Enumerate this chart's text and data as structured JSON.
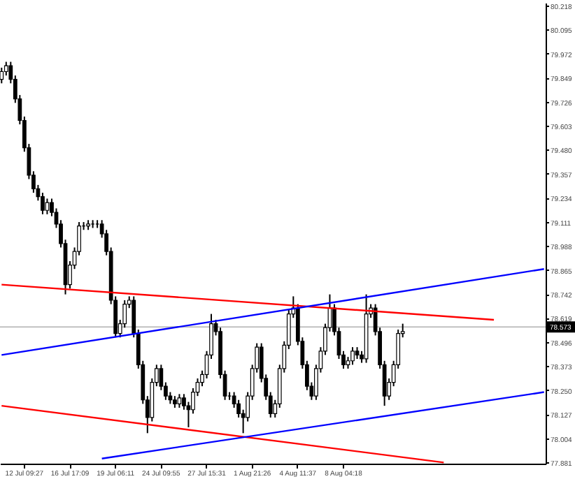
{
  "chart_data": {
    "type": "candlestick",
    "color": "#000000",
    "categories": [
      null,
      null,
      null,
      null,
      null,
      "12 Jul 09:27",
      null,
      null,
      null,
      null,
      null,
      null,
      null,
      null,
      null,
      "16 Jul 17:09",
      null,
      null,
      null,
      null,
      null,
      null,
      null,
      null,
      null,
      "19 Jul 06:11",
      null,
      null,
      null,
      null,
      null,
      null,
      null,
      null,
      null,
      "24 Jul 09:55",
      null,
      null,
      null,
      null,
      null,
      null,
      null,
      null,
      null,
      "27 Jul 15:31",
      null,
      null,
      null,
      null,
      null,
      null,
      null,
      null,
      null,
      "1 Aug 21:26",
      null,
      null,
      null,
      null,
      null,
      null,
      null,
      null,
      null,
      "4 Aug 11:37",
      null,
      null,
      null,
      null,
      null,
      null,
      null,
      null,
      null,
      "8 Aug 04:18",
      null,
      null,
      null,
      null,
      null,
      null,
      null,
      null,
      null,
      null,
      null,
      null,
      null,
      null,
      null,
      null,
      null,
      null,
      null,
      null,
      null,
      null,
      null,
      null,
      null,
      null,
      null,
      null,
      null,
      null,
      null,
      null,
      null,
      null,
      null,
      null,
      null,
      null,
      null,
      null,
      null,
      null,
      null,
      null
    ],
    "ohlc": [
      [
        79.84,
        79.9,
        79.82,
        79.88
      ],
      [
        79.88,
        79.93,
        79.86,
        79.91
      ],
      [
        79.91,
        79.93,
        79.82,
        79.84
      ],
      [
        79.84,
        79.86,
        79.72,
        79.74
      ],
      [
        79.74,
        79.76,
        79.61,
        79.63
      ],
      [
        79.63,
        79.65,
        79.47,
        79.49
      ],
      [
        79.49,
        79.51,
        79.33,
        79.35
      ],
      [
        79.35,
        79.37,
        79.26,
        79.28
      ],
      [
        79.28,
        79.3,
        79.22,
        79.24
      ],
      [
        79.24,
        79.26,
        79.15,
        79.17
      ],
      [
        79.17,
        79.23,
        79.15,
        79.21
      ],
      [
        79.21,
        79.23,
        79.14,
        79.16
      ],
      [
        79.16,
        79.18,
        79.08,
        79.1
      ],
      [
        79.1,
        79.12,
        78.98,
        79.0
      ],
      [
        79.0,
        79.02,
        78.74,
        78.79
      ],
      [
        78.79,
        78.91,
        78.77,
        78.89
      ],
      [
        78.89,
        78.98,
        78.87,
        78.96
      ],
      [
        78.96,
        79.11,
        78.94,
        79.09
      ],
      [
        79.09,
        79.11,
        79.07,
        79.09
      ],
      [
        79.09,
        79.12,
        79.07,
        79.1
      ],
      [
        79.1,
        79.12,
        79.08,
        79.1
      ],
      [
        79.1,
        79.12,
        79.08,
        79.1
      ],
      [
        79.1,
        79.12,
        79.03,
        79.05
      ],
      [
        79.05,
        79.07,
        78.94,
        78.96
      ],
      [
        78.96,
        78.98,
        78.69,
        78.71
      ],
      [
        78.71,
        78.73,
        78.52,
        78.54
      ],
      [
        78.54,
        78.61,
        78.52,
        78.59
      ],
      [
        78.59,
        78.71,
        78.57,
        78.69
      ],
      [
        78.69,
        78.73,
        78.67,
        78.71
      ],
      [
        78.71,
        78.73,
        78.52,
        78.54
      ],
      [
        78.54,
        78.56,
        78.36,
        78.38
      ],
      [
        78.38,
        78.4,
        78.18,
        78.2
      ],
      [
        78.2,
        78.22,
        78.03,
        78.11
      ],
      [
        78.11,
        78.31,
        78.09,
        78.29
      ],
      [
        78.29,
        78.38,
        78.27,
        78.36
      ],
      [
        78.36,
        78.38,
        78.25,
        78.27
      ],
      [
        78.27,
        78.29,
        78.2,
        78.22
      ],
      [
        78.22,
        78.24,
        78.18,
        78.2
      ],
      [
        78.2,
        78.22,
        78.16,
        78.18
      ],
      [
        78.18,
        78.23,
        78.16,
        78.21
      ],
      [
        78.21,
        78.23,
        78.15,
        78.17
      ],
      [
        78.17,
        78.19,
        78.06,
        78.15
      ],
      [
        78.15,
        78.26,
        78.13,
        78.24
      ],
      [
        78.24,
        78.31,
        78.22,
        78.29
      ],
      [
        78.29,
        78.35,
        78.27,
        78.33
      ],
      [
        78.33,
        78.45,
        78.31,
        78.43
      ],
      [
        78.43,
        78.64,
        78.41,
        78.59
      ],
      [
        78.59,
        78.61,
        78.53,
        78.55
      ],
      [
        78.55,
        78.57,
        78.31,
        78.33
      ],
      [
        78.33,
        78.35,
        78.2,
        78.22
      ],
      [
        78.22,
        78.24,
        78.2,
        78.22
      ],
      [
        78.22,
        78.24,
        78.16,
        78.18
      ],
      [
        78.18,
        78.2,
        78.11,
        78.13
      ],
      [
        78.13,
        78.15,
        78.03,
        78.11
      ],
      [
        78.11,
        78.24,
        78.09,
        78.22
      ],
      [
        78.22,
        78.38,
        78.2,
        78.36
      ],
      [
        78.36,
        78.49,
        78.34,
        78.47
      ],
      [
        78.47,
        78.49,
        78.29,
        78.31
      ],
      [
        78.31,
        78.33,
        78.2,
        78.22
      ],
      [
        78.22,
        78.24,
        78.11,
        78.13
      ],
      [
        78.13,
        78.2,
        78.11,
        78.18
      ],
      [
        78.18,
        78.38,
        78.16,
        78.36
      ],
      [
        78.36,
        78.5,
        78.34,
        78.48
      ],
      [
        78.48,
        78.66,
        78.46,
        78.64
      ],
      [
        78.64,
        78.73,
        78.62,
        78.67
      ],
      [
        78.67,
        78.69,
        78.48,
        78.5
      ],
      [
        78.5,
        78.52,
        78.36,
        78.38
      ],
      [
        78.38,
        78.4,
        78.25,
        78.27
      ],
      [
        78.27,
        78.29,
        78.2,
        78.22
      ],
      [
        78.22,
        78.38,
        78.2,
        78.36
      ],
      [
        78.36,
        78.47,
        78.34,
        78.45
      ],
      [
        78.45,
        78.59,
        78.43,
        78.57
      ],
      [
        78.57,
        78.74,
        78.55,
        78.67
      ],
      [
        78.67,
        78.69,
        78.53,
        78.55
      ],
      [
        78.55,
        78.57,
        78.41,
        78.43
      ],
      [
        78.43,
        78.45,
        78.36,
        78.38
      ],
      [
        78.38,
        78.42,
        78.36,
        78.4
      ],
      [
        78.4,
        78.47,
        78.38,
        78.45
      ],
      [
        78.45,
        78.47,
        78.41,
        78.43
      ],
      [
        78.43,
        78.45,
        78.39,
        78.41
      ],
      [
        78.41,
        78.74,
        78.39,
        78.64
      ],
      [
        78.64,
        78.69,
        78.62,
        78.67
      ],
      [
        78.67,
        78.69,
        78.53,
        78.55
      ],
      [
        78.55,
        78.57,
        78.36,
        78.38
      ],
      [
        78.38,
        78.4,
        78.17,
        78.22
      ],
      [
        78.22,
        78.31,
        78.2,
        78.29
      ],
      [
        78.29,
        78.4,
        78.27,
        78.38
      ],
      [
        78.38,
        78.56,
        78.36,
        78.54
      ],
      [
        78.54,
        78.59,
        78.52,
        78.55
      ],
      null,
      null,
      null,
      null,
      null,
      null,
      null,
      null,
      null,
      null,
      null,
      null,
      null,
      null,
      null,
      null,
      null,
      null,
      null,
      null,
      null,
      null,
      null,
      null,
      null,
      null,
      null,
      null,
      null,
      null,
      null
    ],
    "series": [
      {
        "type": "line",
        "color": "#ff0000",
        "values": [
          78.79,
          null,
          null,
          null,
          null,
          null,
          null,
          null,
          null,
          null,
          null,
          null,
          null,
          null,
          null,
          null,
          null,
          null,
          null,
          null,
          null,
          null,
          null,
          null,
          null,
          null,
          null,
          null,
          null,
          null,
          null,
          null,
          null,
          null,
          null,
          null,
          null,
          null,
          null,
          null,
          null,
          null,
          null,
          null,
          null,
          null,
          null,
          null,
          null,
          null,
          null,
          null,
          null,
          null,
          null,
          null,
          null,
          null,
          null,
          null,
          null,
          null,
          null,
          null,
          null,
          null,
          null,
          null,
          null,
          null,
          null,
          null,
          null,
          null,
          null,
          null,
          null,
          null,
          null,
          null,
          null,
          null,
          null,
          null,
          null,
          null,
          null,
          null,
          null,
          null,
          null,
          null,
          null,
          null,
          null,
          null,
          null,
          null,
          null,
          null,
          null,
          null,
          null,
          null,
          null,
          null,
          null,
          null,
          78.61,
          null,
          null,
          null,
          null,
          null,
          null,
          null,
          null,
          null,
          null,
          null
        ]
      },
      {
        "type": "line",
        "color": "#0000ff",
        "values": [
          78.43,
          null,
          null,
          null,
          null,
          null,
          null,
          null,
          null,
          null,
          null,
          null,
          null,
          null,
          null,
          null,
          null,
          null,
          null,
          null,
          null,
          null,
          null,
          null,
          null,
          null,
          null,
          null,
          null,
          null,
          null,
          null,
          null,
          null,
          null,
          null,
          null,
          null,
          null,
          null,
          null,
          null,
          null,
          null,
          null,
          null,
          null,
          null,
          null,
          null,
          null,
          null,
          null,
          null,
          null,
          null,
          null,
          null,
          null,
          null,
          null,
          null,
          null,
          null,
          null,
          null,
          null,
          null,
          null,
          null,
          null,
          null,
          null,
          null,
          null,
          null,
          null,
          null,
          null,
          null,
          null,
          null,
          null,
          null,
          null,
          null,
          null,
          null,
          null,
          null,
          null,
          null,
          null,
          null,
          null,
          null,
          null,
          null,
          null,
          null,
          null,
          null,
          null,
          null,
          null,
          null,
          null,
          null,
          null,
          null,
          null,
          null,
          null,
          null,
          null,
          null,
          null,
          null,
          null,
          78.87
        ]
      },
      {
        "type": "line",
        "color": "#ff0000",
        "values": [
          78.17,
          null,
          null,
          null,
          null,
          null,
          null,
          null,
          null,
          null,
          null,
          null,
          null,
          null,
          null,
          null,
          null,
          null,
          null,
          null,
          null,
          null,
          null,
          null,
          null,
          null,
          null,
          null,
          null,
          null,
          null,
          null,
          null,
          null,
          null,
          null,
          null,
          null,
          null,
          null,
          null,
          null,
          null,
          null,
          null,
          null,
          null,
          null,
          null,
          null,
          null,
          null,
          null,
          null,
          null,
          null,
          null,
          null,
          null,
          null,
          null,
          null,
          null,
          null,
          null,
          null,
          null,
          null,
          null,
          null,
          null,
          null,
          null,
          null,
          null,
          null,
          null,
          null,
          null,
          null,
          null,
          null,
          null,
          null,
          null,
          null,
          null,
          null,
          null,
          null,
          null,
          null,
          null,
          null,
          null,
          null,
          null,
          77.88,
          null,
          null,
          null,
          null,
          null,
          null,
          null,
          null,
          null,
          null,
          null,
          null,
          null,
          null,
          null,
          null,
          null,
          null,
          null,
          null,
          null,
          null
        ]
      },
      {
        "type": "line",
        "color": "#0000ff",
        "values": [
          null,
          null,
          null,
          null,
          null,
          null,
          null,
          null,
          null,
          null,
          null,
          null,
          null,
          null,
          null,
          null,
          null,
          null,
          null,
          null,
          null,
          null,
          77.9,
          null,
          null,
          null,
          null,
          null,
          null,
          null,
          null,
          null,
          null,
          null,
          null,
          null,
          null,
          null,
          null,
          null,
          null,
          null,
          null,
          null,
          null,
          null,
          null,
          null,
          null,
          null,
          null,
          null,
          null,
          null,
          null,
          null,
          null,
          null,
          null,
          null,
          null,
          null,
          null,
          null,
          null,
          null,
          null,
          null,
          null,
          null,
          null,
          null,
          null,
          null,
          null,
          null,
          null,
          null,
          null,
          null,
          null,
          null,
          null,
          null,
          null,
          null,
          null,
          null,
          null,
          null,
          null,
          null,
          null,
          null,
          null,
          null,
          null,
          null,
          null,
          null,
          null,
          null,
          null,
          null,
          null,
          null,
          null,
          null,
          null,
          null,
          null,
          null,
          null,
          null,
          null,
          null,
          null,
          null,
          null,
          78.24
        ]
      }
    ],
    "ylim": [
      77.874,
      80.232
    ],
    "yticks": [
      80.218,
      80.095,
      79.972,
      79.849,
      79.726,
      79.603,
      {
        "value": 79.48,
        "label": "79.480"
      },
      79.357,
      79.234,
      79.111,
      78.988,
      78.865,
      78.742,
      78.619,
      78.496,
      78.373,
      {
        "value": 78.25,
        "label": "78.250"
      },
      78.127,
      78.004,
      77.881
    ],
    "ref_lines": [
      {
        "axis": "y",
        "value": 78.573,
        "label": "78.573",
        "color": "#c0c0c0"
      }
    ]
  }
}
